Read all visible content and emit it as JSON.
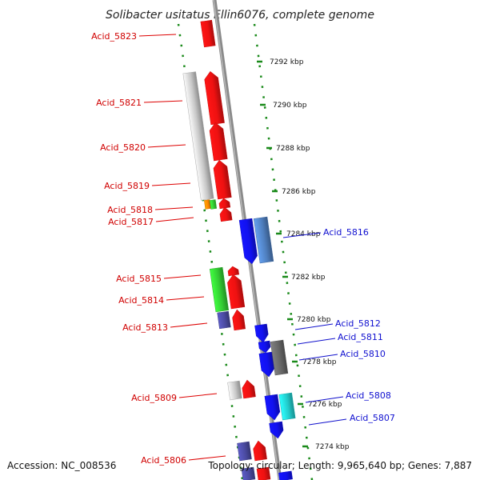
{
  "title": "Solibacter usitatus Ellin6076, complete genome",
  "accession": "Accession: NC_008536",
  "summary": "Topology: circular; Length: 9,965,640 bp; Genes: 7,887",
  "colors": {
    "forward": "#ee1111",
    "reverse": "#1111ee",
    "light_gray": "#c8c8c8",
    "dark_gray": "#666666",
    "green": "#33cc33",
    "orange": "#ff8800",
    "navy": "#4a4aa0",
    "steel_blue": "#4f7fbf",
    "cyan": "#22cccc",
    "backbone": "#888888",
    "tick": "#1a8a1a",
    "forward_label": "#dd0000",
    "reverse_label": "#1010cc"
  },
  "scale_labels": [
    "7292 kbp",
    "7290 kbp",
    "7288 kbp",
    "7286 kbp",
    "7284 kbp",
    "7282 kbp",
    "7280 kbp",
    "7278 kbp",
    "7276 kbp",
    "7274 kbp"
  ],
  "forward_labels": [
    "Acid_5823",
    "Acid_5821",
    "Acid_5820",
    "Acid_5819",
    "Acid_5818",
    "Acid_5817",
    "Acid_5815",
    "Acid_5814",
    "Acid_5813",
    "Acid_5809",
    "Acid_5806"
  ],
  "reverse_labels": [
    "Acid_5816",
    "Acid_5812",
    "Acid_5811",
    "Acid_5810",
    "Acid_5808",
    "Acid_5807"
  ]
}
